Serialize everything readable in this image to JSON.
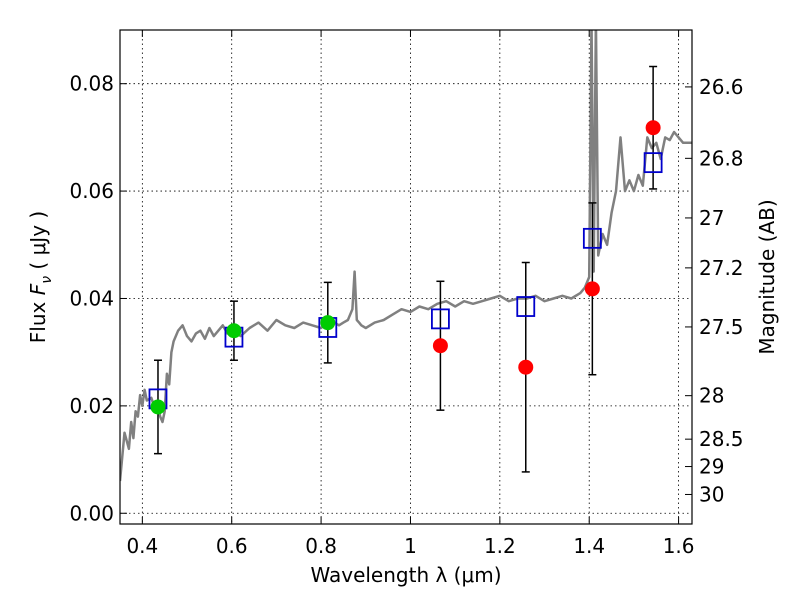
{
  "chart_data": {
    "type": "scatter",
    "xlabel": "Wavelength  λ (μm)",
    "ylabel": "Flux  F_ν ( μJy )",
    "ylabel_parts": {
      "prefix": "Flux  ",
      "symbol": "F",
      "subscript": "ν",
      "suffix": "  ( μJy )"
    },
    "y2label": "Magnitude (AB)",
    "xlim": [
      0.35,
      1.63
    ],
    "ylim": [
      -0.002,
      0.09
    ],
    "grid": true,
    "xticks": [
      0.4,
      0.6,
      0.8,
      1.0,
      1.2,
      1.4,
      1.6
    ],
    "xtick_labels": [
      "0.4",
      "0.6",
      "0.8",
      "1",
      "1.2",
      "1.4",
      "1.6"
    ],
    "yticks": [
      0.0,
      0.02,
      0.04,
      0.06,
      0.08
    ],
    "ytick_labels": [
      "0.00",
      "0.02",
      "0.04",
      "0.06",
      "0.08"
    ],
    "y2ticks": [
      {
        "label": "26.6",
        "flux": 0.0794
      },
      {
        "label": "26.8",
        "flux": 0.0661
      },
      {
        "label": "27",
        "flux": 0.055
      },
      {
        "label": "27.2",
        "flux": 0.0457
      },
      {
        "label": "27.5",
        "flux": 0.0347
      },
      {
        "label": "28",
        "flux": 0.0219
      },
      {
        "label": "28.5",
        "flux": 0.0138
      },
      {
        "label": "29",
        "flux": 0.0087
      },
      {
        "label": "30",
        "flux": 0.0035
      }
    ],
    "colors": {
      "spectrum": "#808080",
      "model_box": "#0000cc",
      "green_points": "#00cc00",
      "red_points": "#ff0000",
      "errorbar": "#000000"
    },
    "model_spectrum": {
      "x": [
        0.35,
        0.36,
        0.37,
        0.375,
        0.38,
        0.385,
        0.39,
        0.395,
        0.4,
        0.405,
        0.41,
        0.42,
        0.43,
        0.435,
        0.44,
        0.445,
        0.45,
        0.455,
        0.46,
        0.465,
        0.47,
        0.48,
        0.49,
        0.5,
        0.51,
        0.52,
        0.53,
        0.54,
        0.55,
        0.56,
        0.57,
        0.58,
        0.59,
        0.6,
        0.62,
        0.64,
        0.66,
        0.68,
        0.7,
        0.72,
        0.74,
        0.76,
        0.78,
        0.8,
        0.82,
        0.84,
        0.85,
        0.86,
        0.87,
        0.875,
        0.88,
        0.885,
        0.89,
        0.9,
        0.92,
        0.94,
        0.96,
        0.98,
        1.0,
        1.02,
        1.04,
        1.06,
        1.08,
        1.1,
        1.12,
        1.14,
        1.16,
        1.18,
        1.2,
        1.22,
        1.24,
        1.26,
        1.28,
        1.3,
        1.32,
        1.34,
        1.36,
        1.38,
        1.39,
        1.395,
        1.4,
        1.405,
        1.41,
        1.415,
        1.42,
        1.43,
        1.44,
        1.45,
        1.46,
        1.47,
        1.48,
        1.49,
        1.5,
        1.51,
        1.52,
        1.53,
        1.54,
        1.55,
        1.56,
        1.57,
        1.58,
        1.59,
        1.6,
        1.61,
        1.62,
        1.63
      ],
      "y": [
        0.006,
        0.015,
        0.012,
        0.017,
        0.014,
        0.019,
        0.018,
        0.022,
        0.02,
        0.023,
        0.021,
        0.0215,
        0.019,
        0.02,
        0.018,
        0.017,
        0.019,
        0.026,
        0.024,
        0.03,
        0.032,
        0.034,
        0.035,
        0.033,
        0.032,
        0.0335,
        0.034,
        0.0325,
        0.0345,
        0.033,
        0.034,
        0.035,
        0.0335,
        0.034,
        0.033,
        0.0345,
        0.0355,
        0.034,
        0.036,
        0.035,
        0.0345,
        0.0355,
        0.035,
        0.0345,
        0.036,
        0.035,
        0.0355,
        0.036,
        0.038,
        0.045,
        0.036,
        0.0355,
        0.035,
        0.0345,
        0.0355,
        0.036,
        0.037,
        0.038,
        0.0375,
        0.0385,
        0.038,
        0.039,
        0.0395,
        0.0385,
        0.0395,
        0.039,
        0.0395,
        0.04,
        0.0405,
        0.0395,
        0.04,
        0.04,
        0.0405,
        0.0395,
        0.04,
        0.0405,
        0.04,
        0.041,
        0.042,
        0.043,
        0.044,
        0.092,
        0.045,
        0.092,
        0.048,
        0.052,
        0.05,
        0.056,
        0.06,
        0.07,
        0.06,
        0.062,
        0.06,
        0.063,
        0.061,
        0.07,
        0.068,
        0.069,
        0.066,
        0.07,
        0.0695,
        0.071,
        0.07,
        0.069,
        0.069,
        0.069
      ]
    },
    "model_boxes": [
      {
        "x": 0.435,
        "y": 0.0213
      },
      {
        "x": 0.605,
        "y": 0.0328
      },
      {
        "x": 0.815,
        "y": 0.0346
      },
      {
        "x": 1.067,
        "y": 0.0362
      },
      {
        "x": 1.258,
        "y": 0.0385
      },
      {
        "x": 1.407,
        "y": 0.0512
      },
      {
        "x": 1.543,
        "y": 0.0653
      }
    ],
    "observed_points": [
      {
        "x": 0.435,
        "y": 0.0198,
        "err": 0.0087,
        "color": "green"
      },
      {
        "x": 0.605,
        "y": 0.034,
        "err": 0.0055,
        "color": "green"
      },
      {
        "x": 0.815,
        "y": 0.0355,
        "err": 0.0075,
        "color": "green"
      },
      {
        "x": 1.067,
        "y": 0.0312,
        "err": 0.012,
        "color": "red"
      },
      {
        "x": 1.258,
        "y": 0.0272,
        "err": 0.0195,
        "color": "red"
      },
      {
        "x": 1.407,
        "y": 0.0418,
        "err": 0.016,
        "color": "red"
      },
      {
        "x": 1.543,
        "y": 0.0718,
        "err": 0.0114,
        "color": "red"
      }
    ]
  }
}
